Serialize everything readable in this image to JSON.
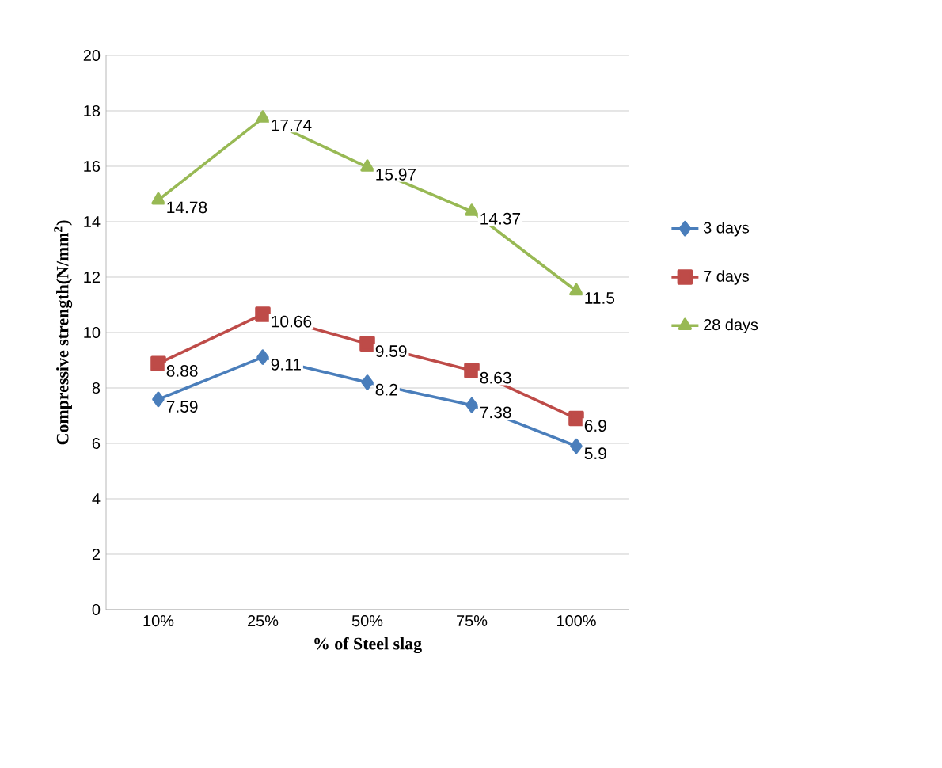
{
  "chart_data": {
    "type": "line",
    "categories": [
      "10%",
      "25%",
      "50%",
      "75%",
      "100%"
    ],
    "xlabel": "% of Steel slag",
    "ylabel": "Compressive strength(N/mm$^{2}$)",
    "ylim": [
      0,
      20
    ],
    "yticks": [
      0,
      2,
      4,
      6,
      8,
      10,
      12,
      14,
      16,
      18,
      20
    ],
    "grid": "y",
    "legend": "right",
    "data_labels": true,
    "line_style": "solid",
    "series": [
      {
        "name": "3 days",
        "color": "#4a7ebb",
        "marker": "diamond",
        "values": [
          7.59,
          9.11,
          8.2,
          7.38,
          5.9
        ]
      },
      {
        "name": "7 days",
        "color": "#be4b48",
        "marker": "square",
        "values": [
          8.88,
          10.66,
          9.59,
          8.63,
          6.9
        ]
      },
      {
        "name": "28 days",
        "color": "#98b954",
        "marker": "triangle",
        "values": [
          14.78,
          17.74,
          15.97,
          14.37,
          11.5
        ]
      }
    ]
  }
}
